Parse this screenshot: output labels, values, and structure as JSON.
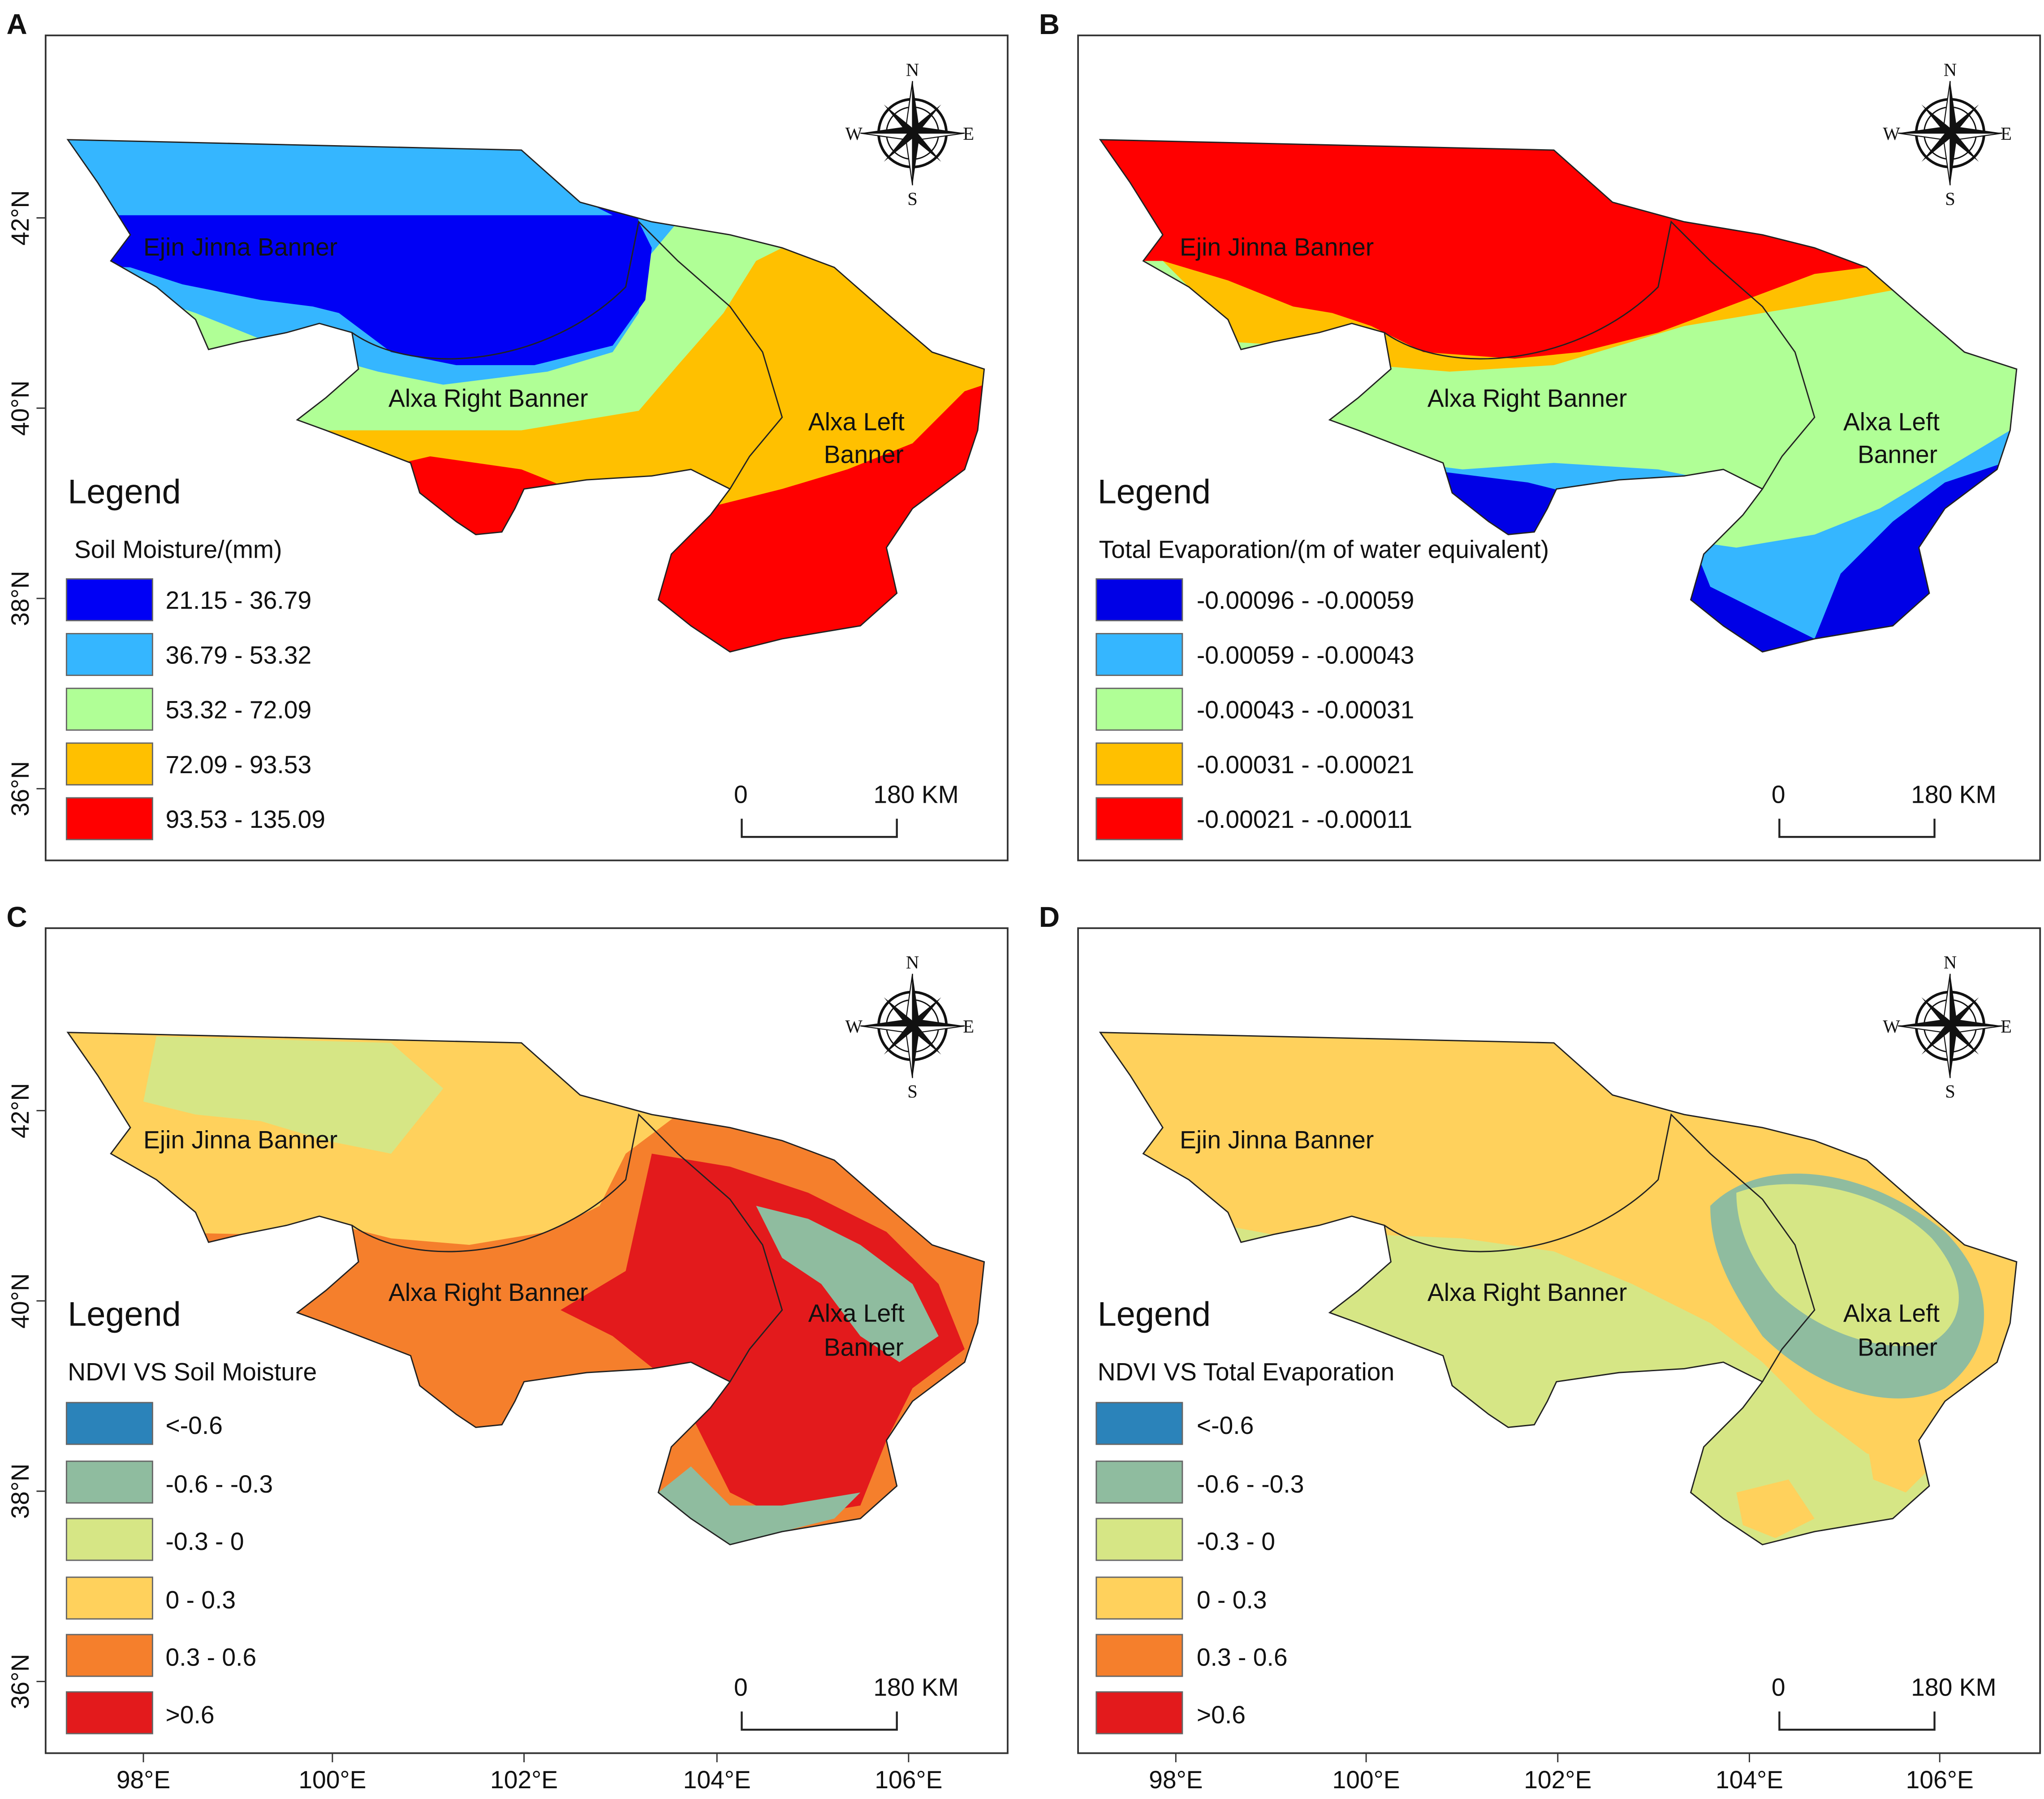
{
  "panels": [
    {
      "id": "A",
      "letter": "A",
      "colors": [
        "#0000f5",
        "#35b6ff",
        "#b0ff96",
        "#ffc000",
        "#ff0000"
      ],
      "zones": [
        4,
        4,
        3,
        2,
        1,
        0,
        1,
        2
      ],
      "legend_title": "Legend",
      "legend_variable": "Soil Moisture/(mm)",
      "classes": [
        "21.15 - 36.79",
        "36.79 - 53.32",
        "53.32 - 72.09",
        "72.09 - 93.53",
        "93.53 - 135.09"
      ]
    },
    {
      "id": "B",
      "letter": "B",
      "colors": [
        "#0000e6",
        "#35b6ff",
        "#b0ff96",
        "#ffc000",
        "#ff0000"
      ],
      "zones": [
        0,
        1,
        2,
        2,
        3,
        4,
        4,
        4
      ],
      "legend_title": "Legend",
      "legend_variable": "Total Evaporation/(m of water equivalent)",
      "classes": [
        "-0.00096 - -0.00059",
        "-0.00059 - -0.00043",
        "-0.00043 - -0.00031",
        "-0.00031 - -0.00021",
        "-0.00021 - -0.00011"
      ]
    },
    {
      "id": "C",
      "letter": "C",
      "colors": [
        "#2b83ba",
        "#8fbc9f",
        "#d6e685",
        "#ffd15c",
        "#f57f2c",
        "#e31a1c"
      ],
      "zones": [
        4,
        5,
        3,
        3,
        3,
        2,
        1,
        1
      ],
      "legend_title": "Legend",
      "legend_variable": "NDVI VS Soil Moisture",
      "classes": [
        "<-0.6",
        "-0.6 - -0.3",
        "-0.3 - 0",
        "0 - 0.3",
        "0.3 - 0.6",
        ">0.6"
      ]
    },
    {
      "id": "D",
      "letter": "D",
      "colors": [
        "#2b83ba",
        "#8fbc9f",
        "#d6e685",
        "#ffd15c",
        "#f57f2c",
        "#e31a1c"
      ],
      "zones": [
        3,
        1,
        2,
        2,
        2,
        3,
        3,
        3
      ],
      "legend_title": "Legend",
      "legend_variable": "NDVI VS Total Evaporation",
      "classes": [
        "<-0.6",
        "-0.6 - -0.3",
        "-0.3 - 0",
        "0 - 0.3",
        "0.3 - 0.6",
        ">0.6"
      ]
    }
  ],
  "labels": {
    "ejin": "Ejin Jinna Banner",
    "alxa_right": "Alxa Right Banner",
    "alxa_left_1": "Alxa Left",
    "alxa_left_2": "Banner"
  },
  "compass": {
    "n": "N",
    "s": "S",
    "e": "E",
    "w": "W"
  },
  "scale_bar": {
    "start": "0",
    "end": "180 KM"
  },
  "lat_ticks": [
    "42°N",
    "40°N",
    "38°N",
    "36°N"
  ],
  "lon_ticks": [
    "98°E",
    "100°E",
    "102°E",
    "104°E",
    "106°E"
  ]
}
